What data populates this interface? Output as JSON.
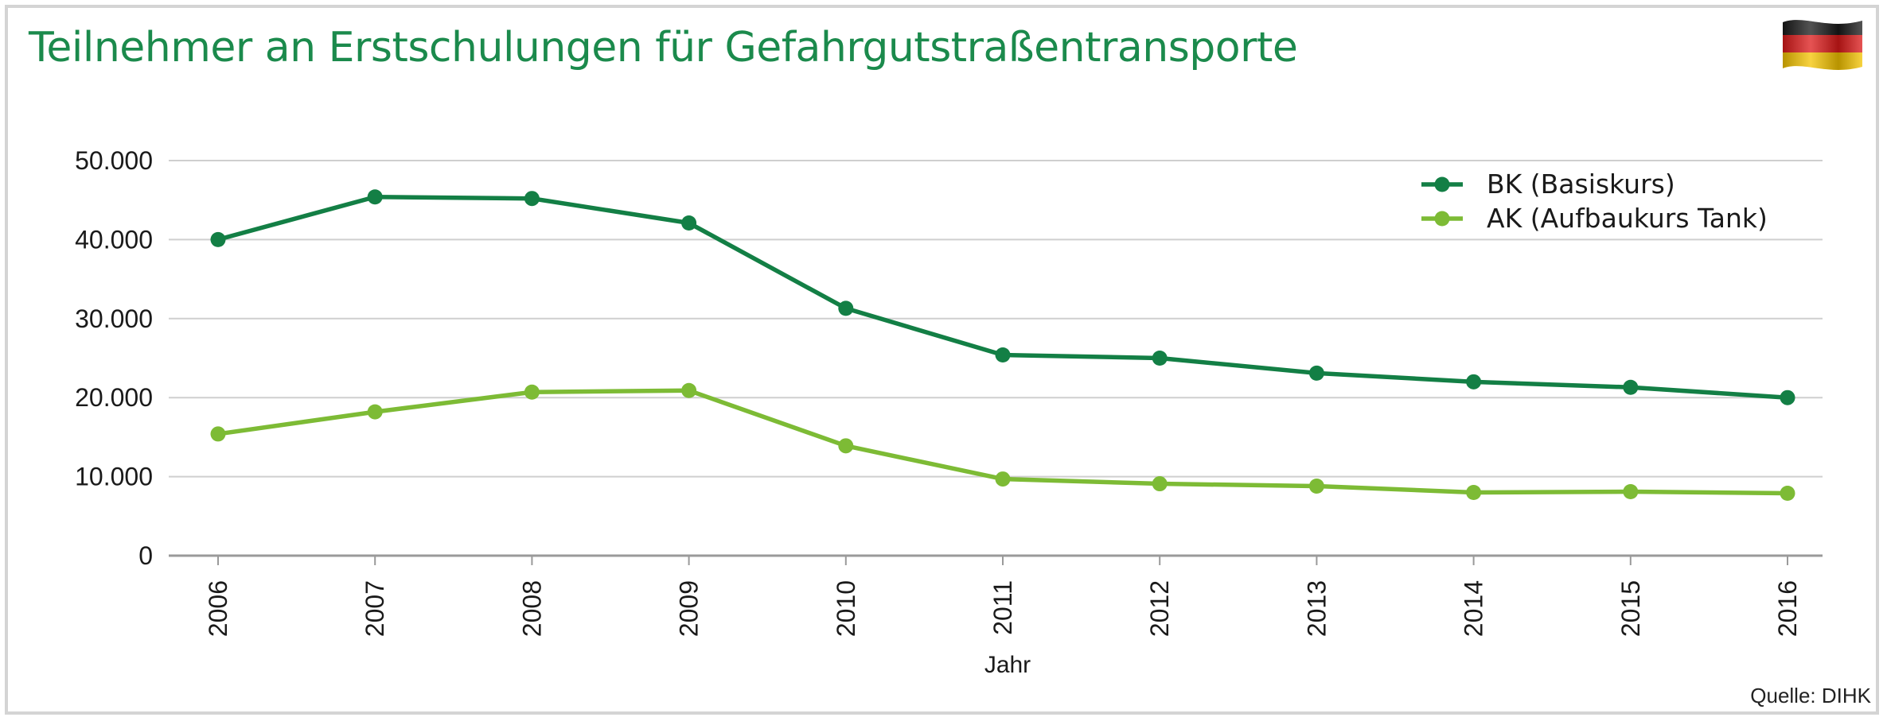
{
  "title": "Teilnehmer an Erstschulungen für Gefahrgutstraßentransporte",
  "source": "Quelle: DIHK",
  "flag_icon": "germany-flag-icon",
  "colors": {
    "title": "#1b8a4c",
    "bk": "#137f45",
    "ak": "#7dbb35",
    "grid": "#cfcfcf",
    "axis": "#9a9a9a",
    "text": "#1a1a1a"
  },
  "chart_data": {
    "type": "line",
    "title": "Teilnehmer an Erstschulungen für Gefahrgutstraßentransporte",
    "xlabel": "Jahr",
    "ylabel": "",
    "categories": [
      "2006",
      "2007",
      "2008",
      "2009",
      "2010",
      "2011",
      "2012",
      "2013",
      "2014",
      "2015",
      "2016"
    ],
    "ylim": [
      0,
      50000
    ],
    "yticks": [
      0,
      10000,
      20000,
      30000,
      40000,
      50000
    ],
    "ytick_labels": [
      "0",
      "10.000",
      "20.000",
      "30.000",
      "40.000",
      "50.000"
    ],
    "grid": true,
    "legend_position": "top-right",
    "series": [
      {
        "name": "BK (Basiskurs)",
        "color": "#137f45",
        "values": [
          40000,
          45400,
          45200,
          42100,
          31300,
          25400,
          25000,
          23100,
          22000,
          21300,
          20000
        ]
      },
      {
        "name": "AK (Aufbaukurs Tank)",
        "color": "#7dbb35",
        "values": [
          15400,
          18200,
          20700,
          20900,
          13900,
          9700,
          9100,
          8800,
          8000,
          8100,
          7900
        ]
      }
    ]
  }
}
